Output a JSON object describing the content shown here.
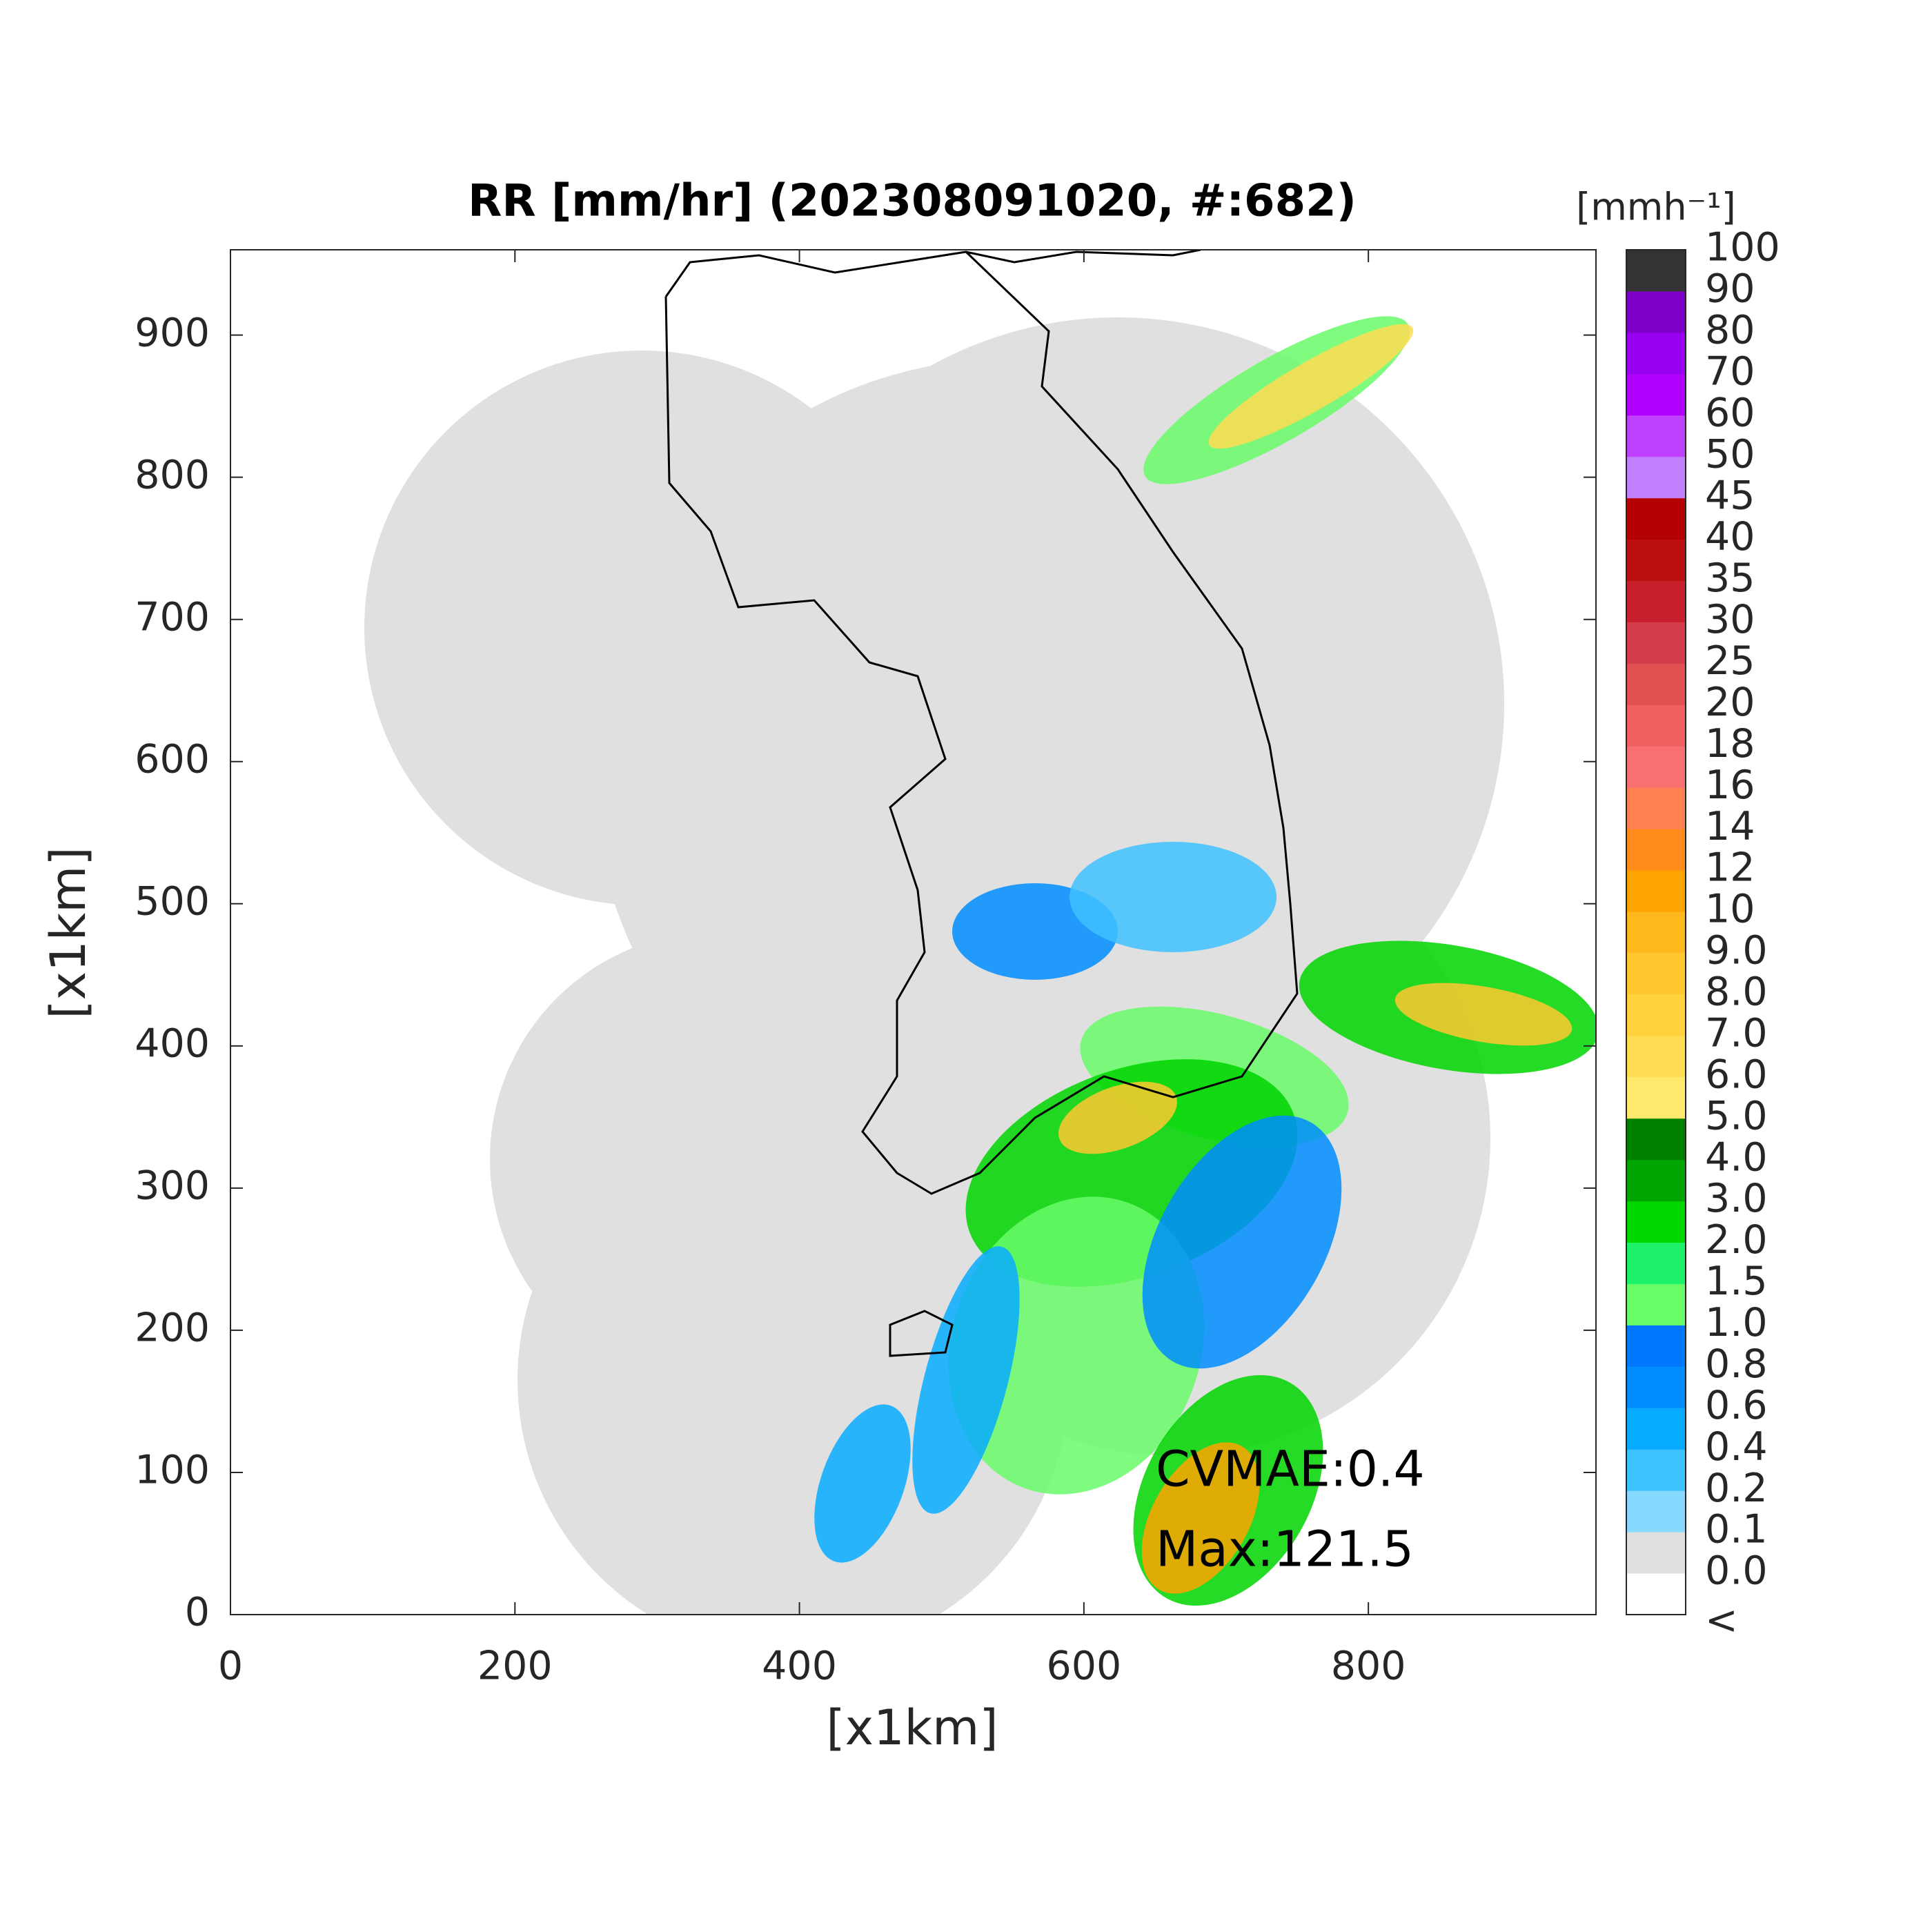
{
  "chart_data": {
    "type": "map",
    "title": "RR [mm/hr] (202308091020, #:682)",
    "xlabel": "[x1km]",
    "ylabel": "[x1km]",
    "xlim": [
      0,
      960
    ],
    "ylim": [
      0,
      960
    ],
    "xticks": [
      0,
      200,
      400,
      600,
      800
    ],
    "yticks": [
      0,
      100,
      200,
      300,
      400,
      500,
      600,
      700,
      800,
      900
    ],
    "annotations": [
      "CVMAE:0.4",
      "Max:121.5"
    ],
    "colorbar": {
      "title": "[mmh⁻¹]",
      "labels": [
        "<",
        "0.0",
        "0.1",
        "0.2",
        "0.4",
        "0.6",
        "0.8",
        "1.0",
        "1.5",
        "2.0",
        "3.0",
        "4.0",
        "5.0",
        "6.0",
        "7.0",
        "8.0",
        "9.0",
        "10",
        "12",
        "14",
        "16",
        "18",
        "20",
        "25",
        "30",
        "35",
        "40",
        "45",
        "50",
        "60",
        "70",
        "80",
        "90",
        "100"
      ],
      "colors": [
        "#ffffff",
        "#e0e0e0",
        "#87d9ff",
        "#3ec1ff",
        "#07abff",
        "#008dff",
        "#0077ff",
        "#69fc69",
        "#1ef26a",
        "#00d500",
        "#00a400",
        "#008000",
        "#ffea6e",
        "#ffdc52",
        "#ffd23e",
        "#ffc830",
        "#ffb71e",
        "#ffa300",
        "#ff8c1a",
        "#ff8050",
        "#f87070",
        "#f06060",
        "#e05050",
        "#d33c48",
        "#c8202d",
        "#bb1010",
        "#b30000",
        "#c080ff",
        "#c040ff",
        "#b000ff",
        "#9a00f0",
        "#8000c8",
        "#333333"
      ]
    }
  }
}
